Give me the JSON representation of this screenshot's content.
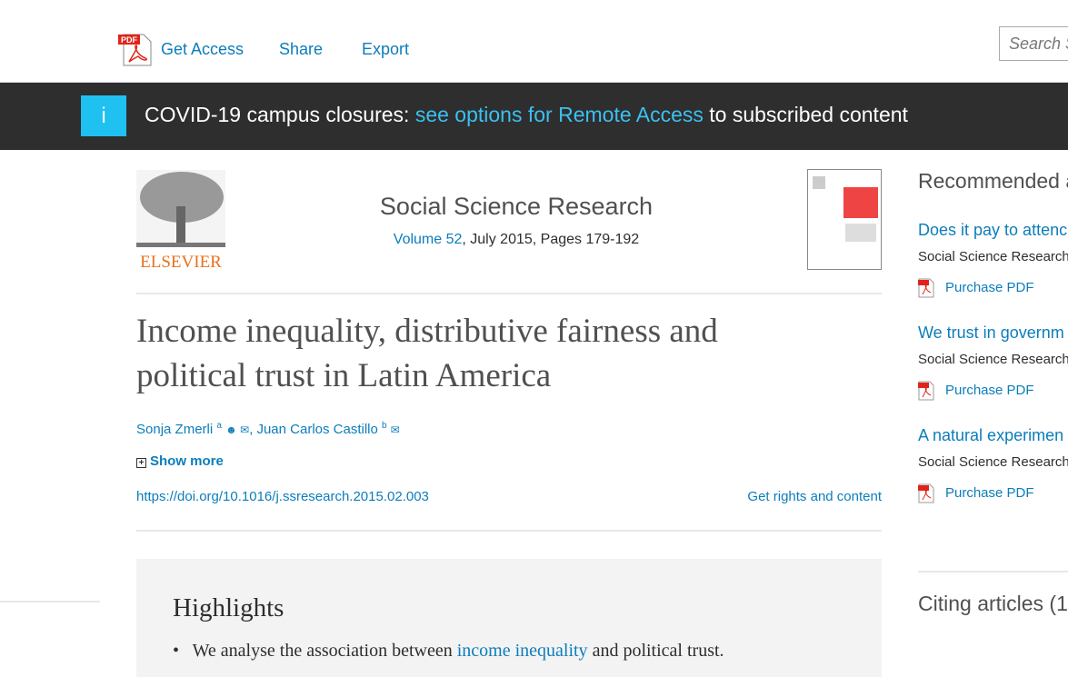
{
  "toolbar": {
    "get_access": "Get Access",
    "share": "Share",
    "export": "Export",
    "search_placeholder": "Search S"
  },
  "banner": {
    "icon": "i",
    "prefix": "COVID-19 campus closures: ",
    "link": "see options for Remote Access",
    "suffix": " to subscribed content"
  },
  "journal": {
    "publisher": "ELSEVIER",
    "name": "Social Science Research",
    "volume": "Volume 52",
    "issue": ", July 2015, Pages 179-192"
  },
  "article": {
    "title": "Income inequality, distributive fairness and political trust in Latin America",
    "authors": [
      {
        "name": "Sonja Zmerli",
        "sup": "a"
      },
      {
        "name": "Juan Carlos Castillo",
        "sup": "b"
      }
    ],
    "separator": ",",
    "show_more": "Show more",
    "doi": "https://doi.org/10.1016/j.ssresearch.2015.02.003",
    "rights": "Get rights and content"
  },
  "highlights": {
    "heading": "Highlights",
    "items": [
      {
        "prefix": "We analyse the association between ",
        "link": "income inequality",
        "suffix": " and political trust."
      }
    ]
  },
  "sidebar": {
    "recommended": "Recommended a",
    "items": [
      {
        "title": "Does it pay to attenc",
        "journal": "Social Science Research",
        "pdf": "Purchase PDF"
      },
      {
        "title": "We trust in governm",
        "journal": "Social Science Research",
        "pdf": "Purchase PDF"
      },
      {
        "title": "A natural experimen",
        "journal": "Social Science Research",
        "pdf": "Purchase PDF"
      }
    ],
    "citing": "Citing articles (1"
  }
}
